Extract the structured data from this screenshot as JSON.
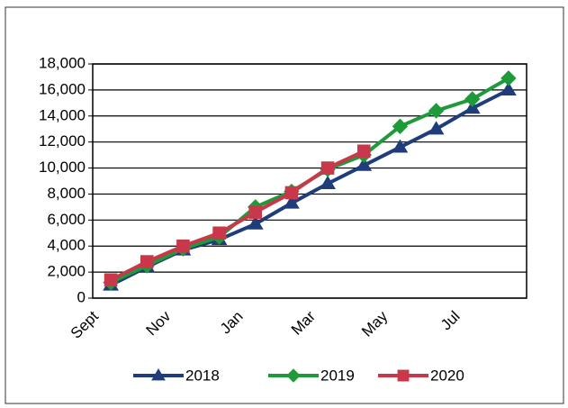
{
  "chart_data": {
    "type": "line",
    "categories": [
      "Sept",
      null,
      "Nov",
      null,
      "Jan",
      null,
      "Mar",
      null,
      "May",
      null,
      "Jul",
      null
    ],
    "series": [
      {
        "name": "2018",
        "color": "#1f3d7a",
        "marker": "triangle",
        "values": [
          1000,
          2400,
          3700,
          4500,
          5700,
          7300,
          8800,
          10200,
          11600,
          13000,
          14600,
          16000
        ]
      },
      {
        "name": "2019",
        "color": "#1f9a3a",
        "marker": "diamond",
        "values": [
          1200,
          2500,
          3800,
          4700,
          7000,
          8200,
          9900,
          11000,
          13200,
          14400,
          15300,
          16900
        ]
      },
      {
        "name": "2020",
        "color": "#c8384a",
        "marker": "square",
        "values": [
          1400,
          2800,
          4000,
          5000,
          6600,
          8100,
          10000,
          11300,
          null,
          null,
          null,
          null
        ]
      }
    ],
    "ylim": [
      0,
      18000
    ],
    "yticks": [
      0,
      {
        "value": 2000,
        "label": "2,000"
      },
      {
        "value": 4000,
        "label": "4,000"
      },
      {
        "value": 6000,
        "label": "6,000"
      },
      {
        "value": 8000,
        "label": "8,000"
      },
      {
        "value": 10000,
        "label": "10,000"
      },
      {
        "value": 12000,
        "label": "12,000"
      },
      {
        "value": 14000,
        "label": "14,000"
      },
      {
        "value": 16000,
        "label": "16,000"
      },
      {
        "value": 18000,
        "label": "18,000"
      }
    ],
    "grid": true,
    "legend": "bottom"
  }
}
